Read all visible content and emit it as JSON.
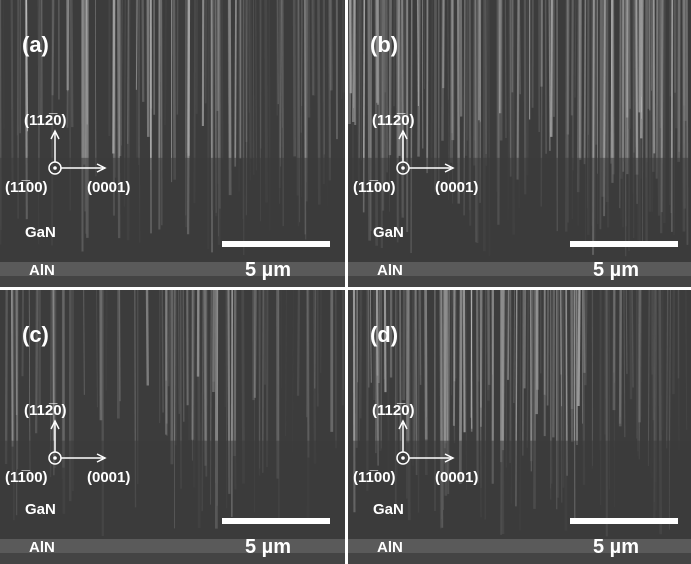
{
  "panels": [
    {
      "label": "(a)",
      "axis_up": "(112̅0)",
      "axis_out": "(11̅00)",
      "axis_right": "(0001)",
      "layer_top": "GaN",
      "layer_bottom": "AlN",
      "scale": "5 µm"
    },
    {
      "label": "(b)",
      "axis_up": "(112̅0)",
      "axis_out": "(11̅00)",
      "axis_right": "(0001)",
      "layer_top": "GaN",
      "layer_bottom": "AlN",
      "scale": "5 µm"
    },
    {
      "label": "(c)",
      "axis_up": "(112̅0)",
      "axis_out": "(11̅00)",
      "axis_right": "(0001)",
      "layer_top": "GaN",
      "layer_bottom": "AlN",
      "scale": "5 µm"
    },
    {
      "label": "(d)",
      "axis_up": "(112̅0)",
      "axis_out": "(11̅00)",
      "axis_right": "(0001)",
      "layer_top": "GaN",
      "layer_bottom": "AlN",
      "scale": "5 µm"
    }
  ]
}
